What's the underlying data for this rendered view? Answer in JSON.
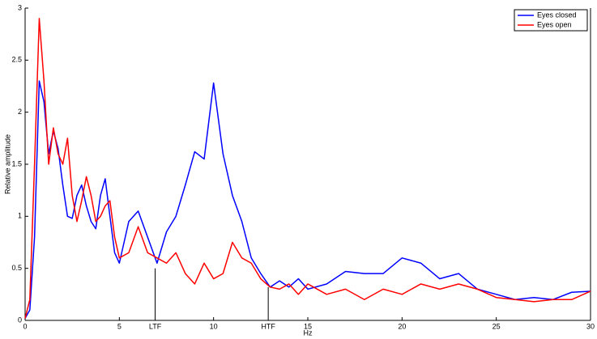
{
  "chart_data": {
    "type": "line",
    "x_label": "Hz",
    "y_label": "Relative amplitude",
    "x": [
      0,
      0.25,
      0.5,
      0.75,
      1,
      1.25,
      1.5,
      1.75,
      2,
      2.25,
      2.5,
      2.75,
      3,
      3.25,
      3.5,
      3.75,
      4,
      4.25,
      4.5,
      4.75,
      5,
      5.5,
      6,
      6.5,
      7,
      7.5,
      8,
      8.5,
      9,
      9.5,
      10,
      10.5,
      11,
      11.5,
      12,
      12.5,
      13,
      13.5,
      14,
      14.5,
      15,
      16,
      17,
      18,
      19,
      20,
      21,
      22,
      23,
      24,
      25,
      26,
      27,
      28,
      29,
      30
    ],
    "series": [
      {
        "name": "Eyes closed",
        "color": "#0000ff",
        "values": [
          0.02,
          0.1,
          0.8,
          2.3,
          2.1,
          1.6,
          1.82,
          1.65,
          1.3,
          1.0,
          0.98,
          1.2,
          1.3,
          1.1,
          0.95,
          0.88,
          1.2,
          1.36,
          1.0,
          0.65,
          0.55,
          0.95,
          1.05,
          0.8,
          0.55,
          0.85,
          1.0,
          1.3,
          1.62,
          1.55,
          2.28,
          1.6,
          1.2,
          0.95,
          0.6,
          0.45,
          0.32,
          0.38,
          0.32,
          0.4,
          0.3,
          0.35,
          0.47,
          0.45,
          0.45,
          0.6,
          0.55,
          0.4,
          0.45,
          0.3,
          0.25,
          0.2,
          0.22,
          0.2,
          0.27,
          0.28
        ]
      },
      {
        "name": "Eyes open",
        "color": "#ff0000",
        "values": [
          0.02,
          0.2,
          1.5,
          2.9,
          2.3,
          1.5,
          1.85,
          1.6,
          1.5,
          1.75,
          1.2,
          0.95,
          1.15,
          1.38,
          1.2,
          0.95,
          1.0,
          1.1,
          1.15,
          0.8,
          0.6,
          0.65,
          0.9,
          0.65,
          0.6,
          0.55,
          0.65,
          0.45,
          0.35,
          0.55,
          0.4,
          0.45,
          0.75,
          0.6,
          0.55,
          0.4,
          0.32,
          0.3,
          0.35,
          0.25,
          0.35,
          0.25,
          0.3,
          0.2,
          0.3,
          0.25,
          0.35,
          0.3,
          0.35,
          0.3,
          0.22,
          0.2,
          0.18,
          0.2,
          0.2,
          0.28
        ]
      }
    ],
    "xlim": [
      0,
      30
    ],
    "xticks": [
      0,
      5,
      10,
      15,
      20,
      25,
      30
    ],
    "ylim": [
      0,
      3
    ],
    "yticks": [
      0,
      0.5,
      1,
      1.5,
      2,
      2.5,
      3
    ],
    "annotations": [
      {
        "label": "LTF",
        "x": 6.9,
        "y": 0.5
      },
      {
        "label": "HTF",
        "x": 12.9,
        "y": 0.32
      }
    ],
    "legend": "upper right",
    "grid": false
  }
}
